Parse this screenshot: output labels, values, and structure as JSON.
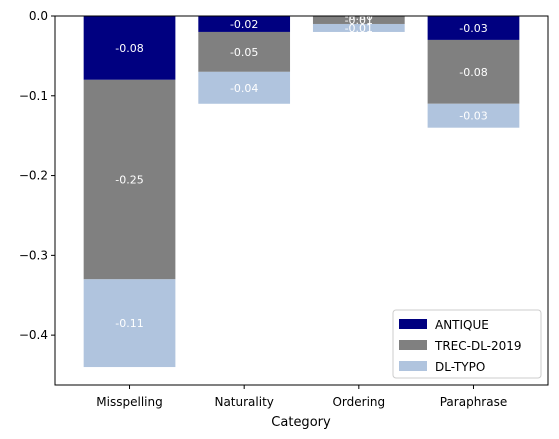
{
  "chart_data": {
    "type": "bar",
    "stacked": true,
    "title": "",
    "xlabel": "Category",
    "ylabel": "",
    "categories": [
      "Misspelling",
      "Naturality",
      "Ordering",
      "Paraphrase"
    ],
    "series": [
      {
        "name": "ANTIQUE",
        "color": "#000080",
        "values": [
          -0.08,
          -0.02,
          -0.0,
          -0.03
        ],
        "labels": [
          "-0.08",
          "-0.02",
          "-0.00",
          "-0.03"
        ]
      },
      {
        "name": "TREC-DL-2019",
        "color": "#808080",
        "values": [
          -0.25,
          -0.05,
          -0.01,
          -0.08
        ],
        "labels": [
          "-0.25",
          "-0.05",
          "-0.01",
          "-0.08"
        ]
      },
      {
        "name": "DL-TYPO",
        "color": "#b0c4de",
        "values": [
          -0.11,
          -0.04,
          -0.01,
          -0.03
        ],
        "labels": [
          "-0.11",
          "-0.04",
          "-0.01",
          "-0.03"
        ]
      }
    ],
    "ylim": [
      -0.4625,
      0.0
    ],
    "yticks": [
      0.0,
      -0.1,
      -0.2,
      -0.3,
      -0.4
    ],
    "ytick_labels": [
      "0.0",
      "−0.1",
      "−0.2",
      "−0.3",
      "−0.4"
    ],
    "grid": false,
    "legend_position": "lower-right"
  }
}
